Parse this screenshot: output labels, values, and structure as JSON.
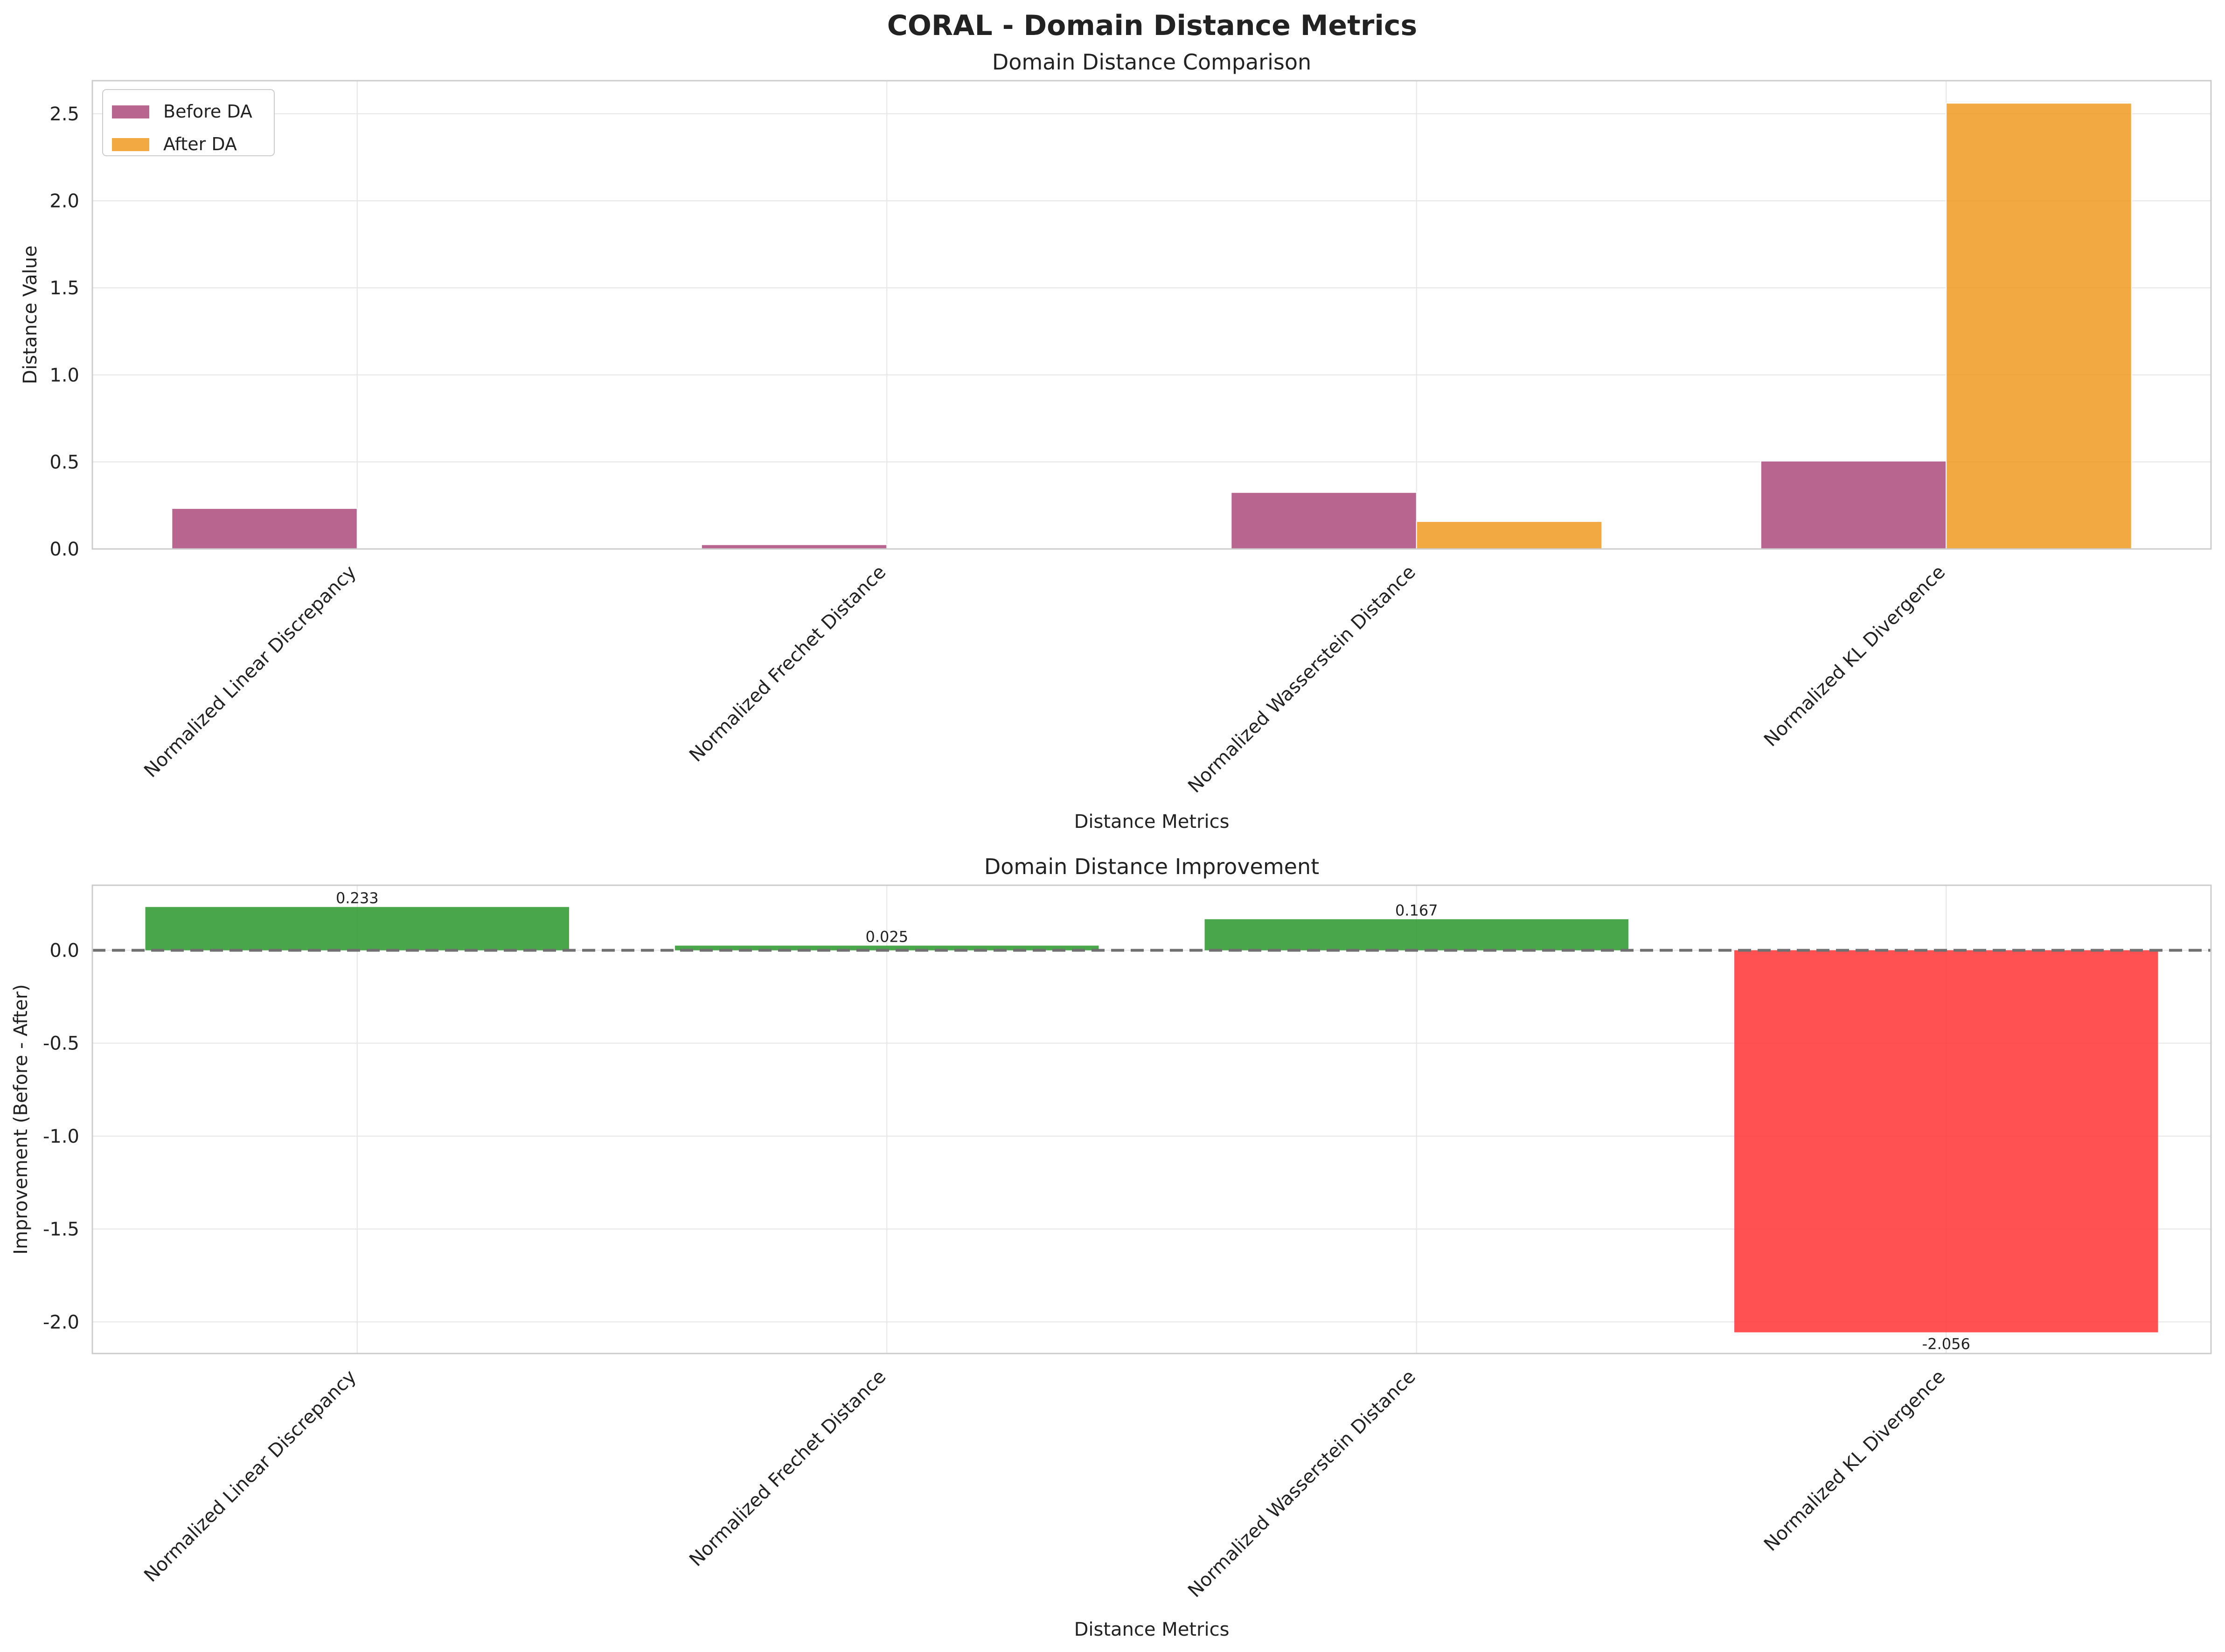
{
  "figure": {
    "title": "CORAL - Domain Distance Metrics"
  },
  "colors": {
    "before": "#a63f73",
    "after": "#ef9412",
    "positive": "#2a962a",
    "negative": "#ff3333",
    "grid": "#e6e6e6",
    "frame": "#cccccc",
    "zero_line": "#707070"
  },
  "chart_data": [
    {
      "type": "bar",
      "title": "Domain Distance Comparison",
      "xlabel": "Distance Metrics",
      "ylabel": "Distance Value",
      "categories": [
        "Normalized Linear Discrepancy",
        "Normalized Frechet Distance",
        "Normalized Wasserstein Distance",
        "Normalized KL Divergence"
      ],
      "series": [
        {
          "name": "Before DA",
          "values": [
            0.233,
            0.025,
            0.325,
            0.505
          ]
        },
        {
          "name": "After DA",
          "values": [
            0.0,
            0.0,
            0.158,
            2.561
          ]
        }
      ],
      "ylim": [
        0,
        2.69
      ],
      "yticks": [
        0.0,
        0.5,
        1.0,
        1.5,
        2.0,
        2.5
      ],
      "ytick_labels": [
        "0.0",
        "0.5",
        "1.0",
        "1.5",
        "2.0",
        "2.5"
      ],
      "grid": true,
      "legend": "upper-left"
    },
    {
      "type": "bar",
      "title": "Domain Distance Improvement",
      "xlabel": "Distance Metrics",
      "ylabel": "Improvement (Before - After)",
      "categories": [
        "Normalized Linear Discrepancy",
        "Normalized Frechet Distance",
        "Normalized Wasserstein Distance",
        "Normalized KL Divergence"
      ],
      "values": [
        0.233,
        0.025,
        0.167,
        -2.056
      ],
      "data_labels": [
        "0.233",
        "0.025",
        "0.167",
        "-2.056"
      ],
      "ylim": [
        -2.17,
        0.35
      ],
      "yticks": [
        -2.0,
        -1.5,
        -1.0,
        -0.5,
        0.0
      ],
      "ytick_labels": [
        "-2.0",
        "-1.5",
        "-1.0",
        "-0.5",
        "0.0"
      ],
      "reference_line": 0,
      "grid": true
    }
  ]
}
